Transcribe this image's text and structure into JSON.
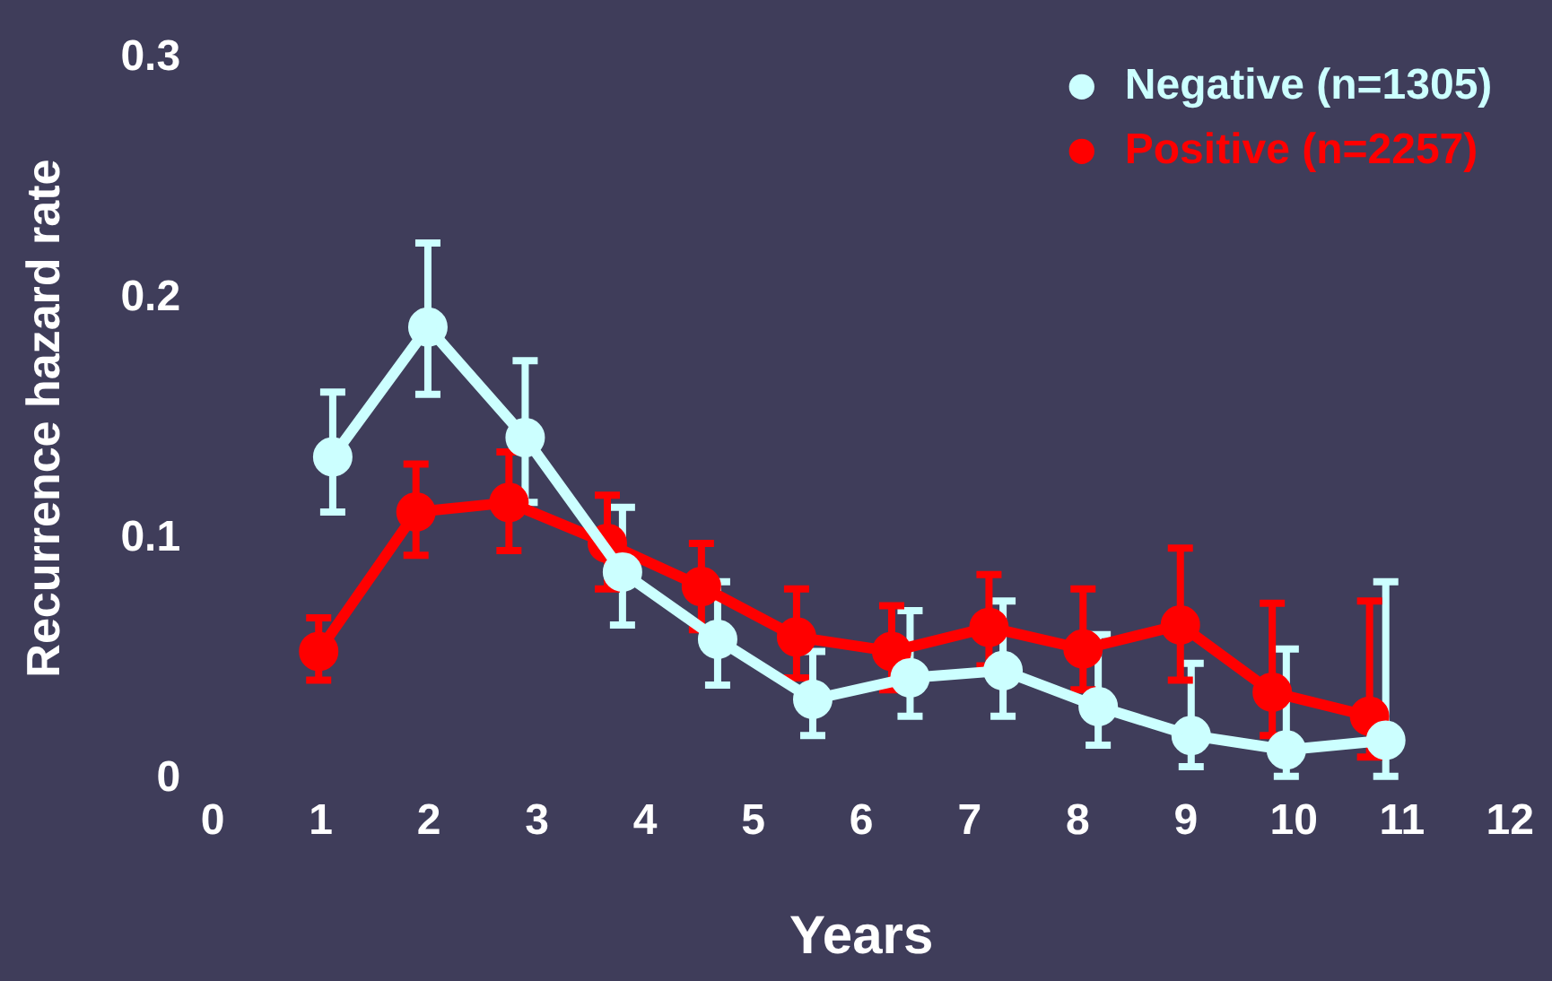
{
  "chart_data": {
    "type": "line",
    "xlabel": "Years",
    "ylabel": "Recurrence hazard rate",
    "xlim": [
      0,
      12
    ],
    "xticks": [
      0,
      1,
      2,
      3,
      4,
      5,
      6,
      7,
      8,
      9,
      10,
      11,
      12
    ],
    "ylim": [
      0,
      0.3
    ],
    "yticks": [
      0,
      0.1,
      0.2,
      0.3
    ],
    "grid": false,
    "legend": "top right",
    "marker": "circle",
    "line_style": "solid",
    "series": [
      {
        "name": "Negative (n=1305)",
        "color": "#ccffff",
        "x": [
          1.11,
          1.99,
          2.89,
          3.79,
          4.67,
          5.55,
          6.45,
          7.31,
          8.19,
          9.05,
          9.93,
          10.85
        ],
        "values": [
          0.134,
          0.188,
          0.142,
          0.086,
          0.058,
          0.033,
          0.042,
          0.045,
          0.03,
          0.018,
          0.012,
          0.016
        ],
        "errors": [
          [
            0.111,
            0.161
          ],
          [
            0.16,
            0.223
          ],
          [
            0.115,
            0.174
          ],
          [
            0.064,
            0.113
          ],
          [
            0.039,
            0.082
          ],
          [
            0.018,
            0.053
          ],
          [
            0.026,
            0.07
          ],
          [
            0.026,
            0.074
          ],
          [
            0.014,
            0.06
          ],
          [
            0.005,
            0.048
          ],
          [
            0.001,
            0.054
          ],
          [
            0.001,
            0.082
          ]
        ]
      },
      {
        "name": "Positive (n=2257)",
        "color": "#ff0000",
        "x": [
          0.98,
          1.88,
          2.74,
          3.65,
          4.52,
          5.4,
          6.28,
          7.18,
          8.05,
          8.95,
          9.8,
          10.7
        ],
        "values": [
          0.053,
          0.111,
          0.115,
          0.098,
          0.08,
          0.059,
          0.053,
          0.063,
          0.054,
          0.064,
          0.036,
          0.026
        ],
        "errors": [
          [
            0.041,
            0.067
          ],
          [
            0.093,
            0.131
          ],
          [
            0.095,
            0.136
          ],
          [
            0.079,
            0.118
          ],
          [
            0.062,
            0.098
          ],
          [
            0.042,
            0.079
          ],
          [
            0.037,
            0.072
          ],
          [
            0.047,
            0.085
          ],
          [
            0.037,
            0.079
          ],
          [
            0.041,
            0.096
          ],
          [
            0.018,
            0.073
          ],
          [
            0.009,
            0.074
          ]
        ]
      }
    ]
  }
}
